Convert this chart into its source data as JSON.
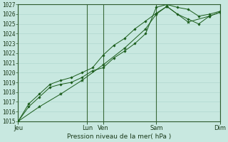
{
  "xlabel": "Pression niveau de la mer( hPa )",
  "ylim": [
    1015,
    1027
  ],
  "yticks": [
    1015,
    1016,
    1017,
    1018,
    1019,
    1020,
    1021,
    1022,
    1023,
    1024,
    1025,
    1026,
    1027
  ],
  "x_day_labels": [
    "Jeu",
    "Lun",
    "Ven",
    "Sam",
    "Dim"
  ],
  "x_day_positions": [
    0,
    3.25,
    4.0,
    6.5,
    9.5
  ],
  "xlim": [
    0,
    9.5
  ],
  "background_color": "#c8e8e0",
  "grid_color": "#b0d8d0",
  "line_color": "#1a5c1a",
  "series1_x": [
    0,
    0.5,
    1.0,
    1.5,
    2.0,
    2.5,
    3.0,
    3.5,
    4.0,
    4.5,
    5.0,
    5.5,
    6.0,
    6.5,
    7.0,
    7.5,
    8.0,
    8.5,
    9.0,
    9.5
  ],
  "series1_y": [
    1015.0,
    1016.5,
    1017.5,
    1018.5,
    1018.8,
    1019.0,
    1019.5,
    1020.2,
    1020.5,
    1021.5,
    1022.2,
    1023.0,
    1024.0,
    1026.7,
    1027.0,
    1026.7,
    1026.5,
    1025.8,
    1026.0,
    1026.3
  ],
  "series2_x": [
    0,
    0.5,
    1.0,
    1.5,
    2.0,
    2.5,
    3.0,
    3.5,
    4.0,
    4.5,
    5.0,
    5.5,
    6.0,
    6.5,
    7.0,
    7.5,
    8.0,
    8.5,
    9.0,
    9.5
  ],
  "series2_y": [
    1015.0,
    1016.8,
    1017.8,
    1018.8,
    1019.2,
    1019.5,
    1020.0,
    1020.5,
    1021.8,
    1022.8,
    1023.5,
    1024.5,
    1025.3,
    1026.1,
    1026.8,
    1026.0,
    1025.5,
    1025.0,
    1025.8,
    1026.2
  ],
  "series3_x": [
    0,
    1.0,
    2.0,
    3.0,
    4.0,
    5.0,
    6.0,
    6.5,
    7.0,
    8.0,
    9.0,
    9.5
  ],
  "series3_y": [
    1015.0,
    1016.5,
    1017.8,
    1019.2,
    1020.8,
    1022.5,
    1024.5,
    1026.0,
    1026.8,
    1025.2,
    1025.8,
    1026.2
  ],
  "vline_positions": [
    0,
    3.25,
    4.0,
    6.5,
    9.5
  ],
  "marker1": "D",
  "marker2": "D",
  "marker3": "*",
  "markersize": 1.8,
  "linewidth": 0.7,
  "xlabel_fontsize": 6.5,
  "ytick_fontsize": 5.5,
  "xtick_fontsize": 6.0
}
